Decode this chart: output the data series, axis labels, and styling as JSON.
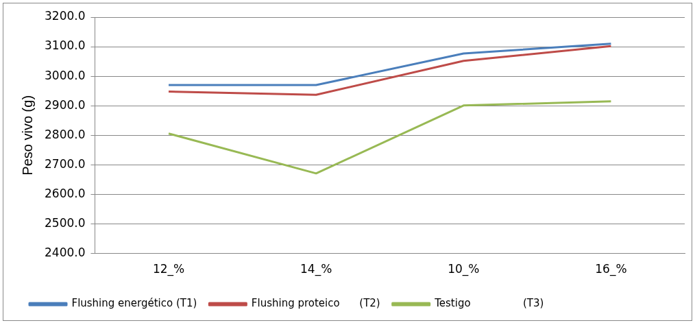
{
  "chart_data": {
    "type": "line",
    "ylabel": "Peso vivo (g)",
    "categories": [
      "12_%",
      "14_%",
      "10_%",
      "16_%"
    ],
    "series": [
      {
        "name": "Flushing energético (T1)",
        "color": "#4a7ebb",
        "values": [
          2970,
          2970,
          3077,
          3110
        ]
      },
      {
        "name": "Flushing proteico      (T2)",
        "color": "#be4b48",
        "values": [
          2948,
          2937,
          3052,
          3102
        ]
      },
      {
        "name": "Testigo                (T3)",
        "color": "#98b954",
        "values": [
          2806,
          2671,
          2901,
          2915
        ]
      }
    ],
    "ylim": [
      2400,
      3200
    ],
    "yticks": [
      {
        "value": 2400,
        "label": "2400.0"
      },
      {
        "value": 2500,
        "label": "2500.0"
      },
      {
        "value": 2600,
        "label": "2600.0"
      },
      {
        "value": 2700,
        "label": "2700.0"
      },
      {
        "value": 2800,
        "label": "2800.0"
      },
      {
        "value": 2900,
        "label": "2900.0"
      },
      {
        "value": 3000,
        "label": "3000.0"
      },
      {
        "value": 3100,
        "label": "3100.0"
      },
      {
        "value": 3200,
        "label": "3200.0"
      }
    ],
    "grid": "y",
    "legend": "bottom",
    "marker": "none",
    "line_style": "solid"
  }
}
